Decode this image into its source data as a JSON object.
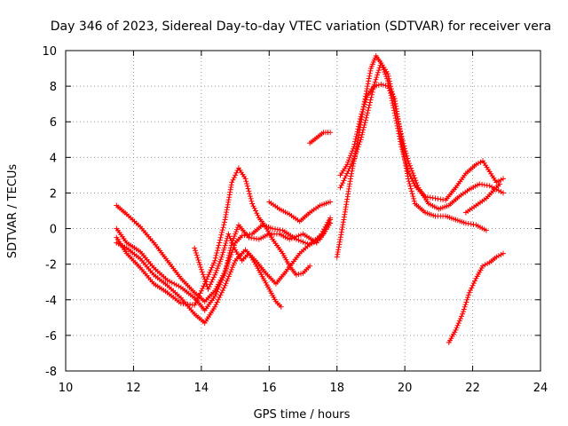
{
  "chart_data": {
    "type": "scatter",
    "title": "Day 346 of 2023, Sidereal Day-to-day VTEC variation (SDTVAR) for receiver vera",
    "xlabel": "GPS time / hours",
    "ylabel": "SDTVAR / TECUs",
    "xlim": [
      10,
      24
    ],
    "ylim": [
      -8,
      10
    ],
    "x_ticks": [
      10,
      12,
      14,
      16,
      18,
      20,
      22,
      24
    ],
    "y_ticks": [
      -8,
      -6,
      -4,
      -2,
      0,
      2,
      4,
      6,
      8,
      10
    ],
    "grid": true,
    "marker": "plus",
    "color": "#ff0000",
    "series": [
      {
        "name": "track-1",
        "points": [
          [
            11.5,
            1.3
          ],
          [
            11.8,
            0.8
          ],
          [
            12.2,
            0.1
          ],
          [
            12.6,
            -0.8
          ],
          [
            13.0,
            -1.8
          ],
          [
            13.4,
            -2.8
          ],
          [
            13.8,
            -3.6
          ],
          [
            14.1,
            -4.1
          ],
          [
            14.4,
            -3.5
          ],
          [
            14.7,
            -2.4
          ],
          [
            15.0,
            -0.8
          ],
          [
            15.2,
            -0.4
          ],
          [
            15.5,
            -0.3
          ],
          [
            15.8,
            0.2
          ],
          [
            16.1,
            0.0
          ],
          [
            16.4,
            -0.1
          ],
          [
            16.8,
            -0.6
          ],
          [
            17.2,
            -0.9
          ],
          [
            17.5,
            -0.6
          ],
          [
            17.8,
            0.3
          ]
        ]
      },
      {
        "name": "track-2",
        "points": [
          [
            11.5,
            -0.8
          ],
          [
            11.8,
            -1.1
          ],
          [
            12.2,
            -1.7
          ],
          [
            12.6,
            -2.6
          ],
          [
            13.0,
            -3.2
          ],
          [
            13.4,
            -3.9
          ],
          [
            13.8,
            -4.8
          ],
          [
            14.1,
            -5.3
          ],
          [
            14.4,
            -4.4
          ],
          [
            14.7,
            -3.2
          ],
          [
            15.0,
            -1.8
          ],
          [
            15.3,
            -1.2
          ],
          [
            15.6,
            -1.8
          ],
          [
            15.9,
            -2.5
          ],
          [
            16.2,
            -3.1
          ],
          [
            16.5,
            -2.4
          ],
          [
            16.9,
            -1.4
          ],
          [
            17.3,
            -0.7
          ],
          [
            17.6,
            -0.3
          ],
          [
            17.8,
            0.5
          ]
        ]
      },
      {
        "name": "track-3",
        "points": [
          [
            11.5,
            0.0
          ],
          [
            11.8,
            -0.8
          ],
          [
            12.2,
            -1.3
          ],
          [
            12.6,
            -2.2
          ],
          [
            13.0,
            -2.9
          ],
          [
            13.4,
            -3.3
          ],
          [
            13.8,
            -3.9
          ],
          [
            14.1,
            -4.6
          ],
          [
            14.4,
            -3.8
          ],
          [
            14.7,
            -2.5
          ],
          [
            14.9,
            -0.8
          ],
          [
            15.1,
            0.2
          ],
          [
            15.4,
            -0.5
          ],
          [
            15.7,
            -0.6
          ],
          [
            16.0,
            -0.3
          ],
          [
            16.3,
            -0.3
          ],
          [
            16.6,
            -0.6
          ],
          [
            17.0,
            -0.3
          ],
          [
            17.4,
            -0.8
          ],
          [
            17.8,
            0.6
          ]
        ]
      },
      {
        "name": "track-4",
        "points": [
          [
            11.5,
            -0.5
          ],
          [
            11.8,
            -1.4
          ],
          [
            12.2,
            -2.2
          ],
          [
            12.6,
            -3.1
          ],
          [
            13.0,
            -3.6
          ],
          [
            13.4,
            -4.2
          ],
          [
            13.8,
            -4.3
          ],
          [
            14.1,
            -3.1
          ],
          [
            14.4,
            -1.8
          ],
          [
            14.7,
            0.5
          ],
          [
            14.9,
            2.6
          ],
          [
            15.1,
            3.4
          ],
          [
            15.3,
            2.8
          ],
          [
            15.5,
            1.4
          ],
          [
            15.7,
            0.6
          ],
          [
            15.9,
            0.1
          ],
          [
            16.1,
            -0.6
          ],
          [
            16.4,
            -1.4
          ],
          [
            16.6,
            -2.1
          ],
          [
            16.8,
            -2.6
          ],
          [
            17.0,
            -2.5
          ],
          [
            17.2,
            -2.1
          ]
        ]
      },
      {
        "name": "track-5",
        "points": [
          [
            13.8,
            -1.1
          ],
          [
            14.0,
            -2.3
          ],
          [
            14.2,
            -3.4
          ],
          [
            14.4,
            -2.6
          ],
          [
            14.6,
            -1.6
          ],
          [
            14.8,
            -0.3
          ],
          [
            15.0,
            -1.2
          ],
          [
            15.2,
            -1.8
          ],
          [
            15.4,
            -1.4
          ],
          [
            15.6,
            -2.0
          ],
          [
            15.8,
            -2.7
          ],
          [
            16.0,
            -3.4
          ],
          [
            16.2,
            -4.1
          ],
          [
            16.35,
            -4.4
          ]
        ]
      },
      {
        "name": "track-6",
        "points": [
          [
            16.0,
            1.5
          ],
          [
            16.3,
            1.1
          ],
          [
            16.6,
            0.8
          ],
          [
            16.9,
            0.4
          ],
          [
            17.2,
            0.9
          ],
          [
            17.5,
            1.3
          ],
          [
            17.8,
            1.5
          ]
        ]
      },
      {
        "name": "track-7",
        "points": [
          [
            17.2,
            4.8
          ],
          [
            17.4,
            5.1
          ],
          [
            17.6,
            5.4
          ],
          [
            17.8,
            5.4
          ]
        ]
      },
      {
        "name": "track-8",
        "points": [
          [
            18.0,
            -1.6
          ],
          [
            18.2,
            0.5
          ],
          [
            18.4,
            2.8
          ],
          [
            18.6,
            4.8
          ],
          [
            18.8,
            7.0
          ],
          [
            19.0,
            9.0
          ],
          [
            19.15,
            9.7
          ],
          [
            19.3,
            9.3
          ],
          [
            19.5,
            8.3
          ],
          [
            19.7,
            6.5
          ],
          [
            19.9,
            4.6
          ],
          [
            20.1,
            3.2
          ],
          [
            20.3,
            2.4
          ],
          [
            20.6,
            1.8
          ],
          [
            20.9,
            1.7
          ],
          [
            21.2,
            1.6
          ],
          [
            21.5,
            2.3
          ],
          [
            21.8,
            3.1
          ],
          [
            22.1,
            3.6
          ],
          [
            22.3,
            3.8
          ],
          [
            22.5,
            3.2
          ],
          [
            22.7,
            2.6
          ],
          [
            22.9,
            2.8
          ]
        ]
      },
      {
        "name": "track-9",
        "points": [
          [
            18.1,
            3.0
          ],
          [
            18.3,
            3.6
          ],
          [
            18.5,
            4.6
          ],
          [
            18.7,
            6.3
          ],
          [
            18.9,
            7.5
          ],
          [
            19.1,
            8.0
          ],
          [
            19.3,
            8.1
          ],
          [
            19.5,
            8.0
          ],
          [
            19.7,
            7.3
          ],
          [
            19.9,
            5.0
          ],
          [
            20.1,
            2.8
          ],
          [
            20.3,
            1.4
          ],
          [
            20.6,
            0.9
          ],
          [
            20.9,
            0.7
          ],
          [
            21.2,
            0.7
          ],
          [
            21.5,
            0.5
          ],
          [
            21.8,
            0.3
          ],
          [
            22.1,
            0.2
          ],
          [
            22.4,
            -0.1
          ]
        ]
      },
      {
        "name": "track-10",
        "points": [
          [
            18.1,
            2.3
          ],
          [
            18.3,
            3.1
          ],
          [
            18.5,
            3.9
          ],
          [
            18.7,
            5.0
          ],
          [
            18.9,
            6.5
          ],
          [
            19.1,
            8.1
          ],
          [
            19.3,
            9.3
          ],
          [
            19.5,
            8.7
          ],
          [
            19.7,
            7.0
          ],
          [
            19.9,
            5.2
          ],
          [
            20.1,
            3.8
          ],
          [
            20.4,
            2.3
          ],
          [
            20.7,
            1.4
          ],
          [
            21.0,
            1.1
          ],
          [
            21.3,
            1.3
          ],
          [
            21.6,
            1.8
          ],
          [
            21.9,
            2.2
          ],
          [
            22.2,
            2.5
          ],
          [
            22.5,
            2.4
          ],
          [
            22.7,
            2.2
          ],
          [
            22.9,
            2.0
          ]
        ]
      },
      {
        "name": "track-11",
        "points": [
          [
            21.3,
            -6.4
          ],
          [
            21.5,
            -5.7
          ],
          [
            21.7,
            -4.8
          ],
          [
            21.9,
            -3.6
          ],
          [
            22.1,
            -2.8
          ],
          [
            22.3,
            -2.1
          ],
          [
            22.5,
            -1.9
          ],
          [
            22.7,
            -1.6
          ],
          [
            22.9,
            -1.4
          ]
        ]
      },
      {
        "name": "track-12",
        "points": [
          [
            21.8,
            0.9
          ],
          [
            22.1,
            1.3
          ],
          [
            22.4,
            1.7
          ],
          [
            22.6,
            2.1
          ],
          [
            22.8,
            2.5
          ]
        ]
      }
    ]
  }
}
